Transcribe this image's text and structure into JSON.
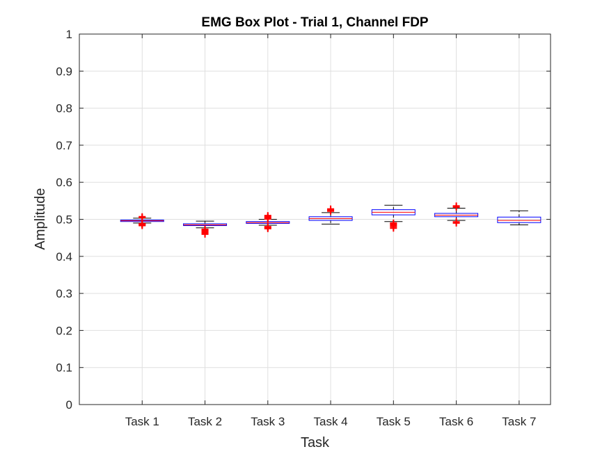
{
  "chart_data": {
    "type": "box",
    "title": "EMG Box Plot - Trial 1, Channel FDP",
    "xlabel": "Task",
    "ylabel": "Amplitude",
    "ylim": [
      0,
      1
    ],
    "y_ticks": [
      "0",
      "0.1",
      "0.2",
      "0.3",
      "0.4",
      "0.5",
      "0.6",
      "0.7",
      "0.8",
      "0.9",
      "1"
    ],
    "categories": [
      "Task 1",
      "Task 2",
      "Task 3",
      "Task 4",
      "Task 5",
      "Task 6",
      "Task 7"
    ],
    "grid": true,
    "boxes": [
      {
        "q1": 0.494,
        "median": 0.496,
        "q3": 0.498,
        "whisker_low": 0.49,
        "whisker_high": 0.503,
        "outliers": [
          0.483,
          0.485,
          0.487,
          0.488,
          0.505,
          0.507
        ]
      },
      {
        "q1": 0.483,
        "median": 0.485,
        "q3": 0.488,
        "whisker_low": 0.477,
        "whisker_high": 0.495,
        "outliers": [
          0.46,
          0.463,
          0.466,
          0.469,
          0.471,
          0.473
        ]
      },
      {
        "q1": 0.489,
        "median": 0.491,
        "q3": 0.494,
        "whisker_low": 0.484,
        "whisker_high": 0.5,
        "outliers": [
          0.475,
          0.478,
          0.48,
          0.501,
          0.504,
          0.507,
          0.51
        ]
      },
      {
        "q1": 0.497,
        "median": 0.502,
        "q3": 0.507,
        "whisker_low": 0.487,
        "whisker_high": 0.518,
        "outliers": [
          0.522,
          0.525,
          0.528
        ]
      },
      {
        "q1": 0.512,
        "median": 0.519,
        "q3": 0.526,
        "whisker_low": 0.494,
        "whisker_high": 0.538,
        "outliers": [
          0.476,
          0.48,
          0.484,
          0.487,
          0.49
        ]
      },
      {
        "q1": 0.507,
        "median": 0.511,
        "q3": 0.516,
        "whisker_low": 0.497,
        "whisker_high": 0.53,
        "outliers": [
          0.49,
          0.493,
          0.533,
          0.536
        ]
      },
      {
        "q1": 0.491,
        "median": 0.497,
        "q3": 0.506,
        "whisker_low": 0.485,
        "whisker_high": 0.523,
        "outliers": []
      }
    ]
  },
  "colors": {
    "box": "#0000ff",
    "median": "#ff0000",
    "whisker": "#000000",
    "outlier": "#ff0000",
    "grid": "#dfdfdf",
    "axis": "#262626"
  }
}
